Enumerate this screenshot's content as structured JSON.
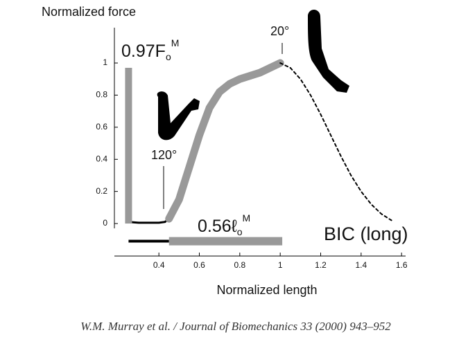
{
  "chart_data": {
    "type": "line",
    "y_label": "Normalized force",
    "x_label": "Normalized length",
    "xlim": [
      0.18,
      1.62
    ],
    "ylim": [
      -0.03,
      1.22
    ],
    "xticks": [
      0.4,
      0.6,
      0.8,
      1,
      1.2,
      1.4,
      1.6
    ],
    "yticks": [
      0,
      0.2,
      0.4,
      0.6,
      0.8,
      1
    ],
    "series": [
      {
        "color": "#000000",
        "style": "solid",
        "x": [
          0.25,
          0.3,
          0.35,
          0.4,
          0.43,
          0.45
        ],
        "values": [
          0.01,
          0.005,
          0.005,
          0.005,
          0.01,
          0.03
        ]
      },
      {
        "color": "#999999",
        "style": "solid",
        "x": [
          0.45,
          0.5,
          0.55,
          0.6,
          0.65,
          0.7,
          0.75,
          0.8,
          0.85,
          0.9,
          0.95,
          1.0
        ],
        "values": [
          0.03,
          0.15,
          0.35,
          0.55,
          0.72,
          0.82,
          0.87,
          0.9,
          0.92,
          0.94,
          0.97,
          1.0
        ]
      },
      {
        "color": "#000000",
        "style": "dashed",
        "x": [
          1.0,
          1.05,
          1.1,
          1.15,
          1.2,
          1.25,
          1.3,
          1.35,
          1.4,
          1.45,
          1.5,
          1.55
        ],
        "values": [
          1.0,
          0.97,
          0.9,
          0.8,
          0.68,
          0.55,
          0.42,
          0.3,
          0.2,
          0.12,
          0.06,
          0.02
        ]
      }
    ],
    "force_bar": {
      "x": 0.25,
      "value": 0.97,
      "label": "0.97F",
      "sub": "o",
      "sup": "M"
    },
    "length_bar": {
      "y": -0.11,
      "start": 0.45,
      "value": 0.56,
      "lead_start": 0.25,
      "label": "0.56ℓ",
      "sub": "o",
      "sup": "M"
    },
    "angle_labels": [
      "20°",
      "120°"
    ],
    "muscle": "BIC (long)",
    "caption": "W.M. Murray et al. / Journal of Biomechanics 33 (2000) 943–952"
  }
}
